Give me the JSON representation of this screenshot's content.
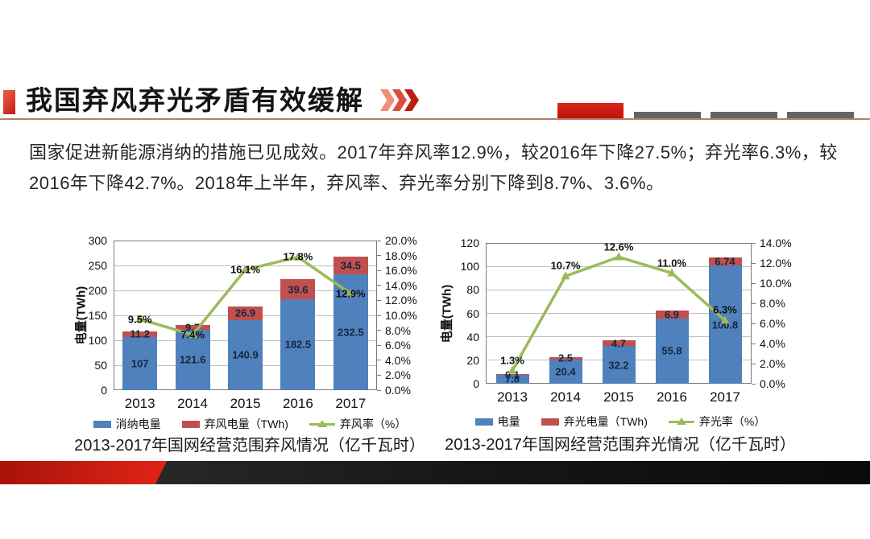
{
  "slide": {
    "title": "我国弃风弃光矛盾有效缓解",
    "paragraph_line1": "国家促进新能源消纳的措施已见成效。2017年弃风率12.9%，较2016年下降27.5%；弃光率6.3%，较",
    "paragraph_line2": "2016年下降42.7%。2018年上半年，弃风率、弃光率分别下降到8.7%、3.6%。",
    "accent_color": "#c41c10",
    "divider_color": "#b3806e"
  },
  "chart_data": [
    {
      "type": "bar+line",
      "caption": "2013-2017年国网经营范围弃风情况（亿千瓦时）",
      "categories": [
        "2013",
        "2014",
        "2015",
        "2016",
        "2017"
      ],
      "bar_series": [
        {
          "name": "消纳电量",
          "color": "#4f81bd",
          "values": [
            107,
            121.6,
            140.9,
            182.5,
            232.5
          ],
          "labels": [
            "107",
            "121.6",
            "140.9",
            "182.5",
            "232.5"
          ]
        },
        {
          "name": "弃风电量（TWh)",
          "color": "#c0504d",
          "values": [
            11.2,
            9.7,
            26.9,
            39.6,
            34.5
          ],
          "labels": [
            "11.2",
            "9.7",
            "26.9",
            "39.6",
            "34.5"
          ]
        }
      ],
      "line_series": {
        "name": "弃风率（%）",
        "color": "#9bbb59",
        "values": [
          9.5,
          7.4,
          16.1,
          17.8,
          12.9
        ],
        "labels": [
          "9.5%",
          "7.4%",
          "16.1%",
          "17.8%",
          "12.9%"
        ],
        "label_pos": [
          "on",
          "on",
          "on",
          "on",
          "on"
        ]
      },
      "left_axis": {
        "title": "电量(TWh)",
        "min": 0,
        "max": 300,
        "ticks": [
          "0",
          "50",
          "100",
          "150",
          "200",
          "250",
          "300"
        ]
      },
      "right_axis": {
        "min": 0,
        "max": 20,
        "ticks": [
          "0.0%",
          "2.0%",
          "4.0%",
          "6.0%",
          "8.0%",
          "10.0%",
          "12.0%",
          "14.0%",
          "16.0%",
          "18.0%",
          "20.0%"
        ]
      },
      "legend_position": "bottom",
      "grid": true
    },
    {
      "type": "bar+line",
      "caption": "2013-2017年国网经营范围弃光情况（亿千瓦时）",
      "categories": [
        "2013",
        "2014",
        "2015",
        "2016",
        "2017"
      ],
      "bar_series": [
        {
          "name": "电量",
          "color": "#4f81bd",
          "values": [
            7.8,
            20.4,
            32.2,
            55.8,
            100.8
          ],
          "labels": [
            "7.8",
            "20.4",
            "32.2",
            "55.8",
            "100.8"
          ]
        },
        {
          "name": "弃光电量（TWh)",
          "color": "#c0504d",
          "values": [
            0.1,
            2.5,
            4.7,
            6.9,
            6.74
          ],
          "labels": [
            "0.1",
            "2.5",
            "4.7",
            "6.9",
            "6.74"
          ]
        }
      ],
      "line_series": {
        "name": "弃光率（%）",
        "color": "#9bbb59",
        "values": [
          1.3,
          10.7,
          12.6,
          11.0,
          6.3
        ],
        "labels": [
          "1.3%",
          "10.7%",
          "12.6%",
          "11.0%",
          "6.3%"
        ],
        "label_pos": [
          "above",
          "above",
          "above",
          "above",
          "above"
        ]
      },
      "left_axis": {
        "title": "电量(TWh)",
        "min": 0,
        "max": 120,
        "ticks": [
          "0",
          "20",
          "40",
          "60",
          "80",
          "100",
          "120"
        ]
      },
      "right_axis": {
        "min": 0,
        "max": 14,
        "ticks": [
          "0.0%",
          "2.0%",
          "4.0%",
          "6.0%",
          "8.0%",
          "10.0%",
          "12.0%",
          "14.0%"
        ]
      },
      "legend_position": "bottom",
      "grid": true
    }
  ]
}
